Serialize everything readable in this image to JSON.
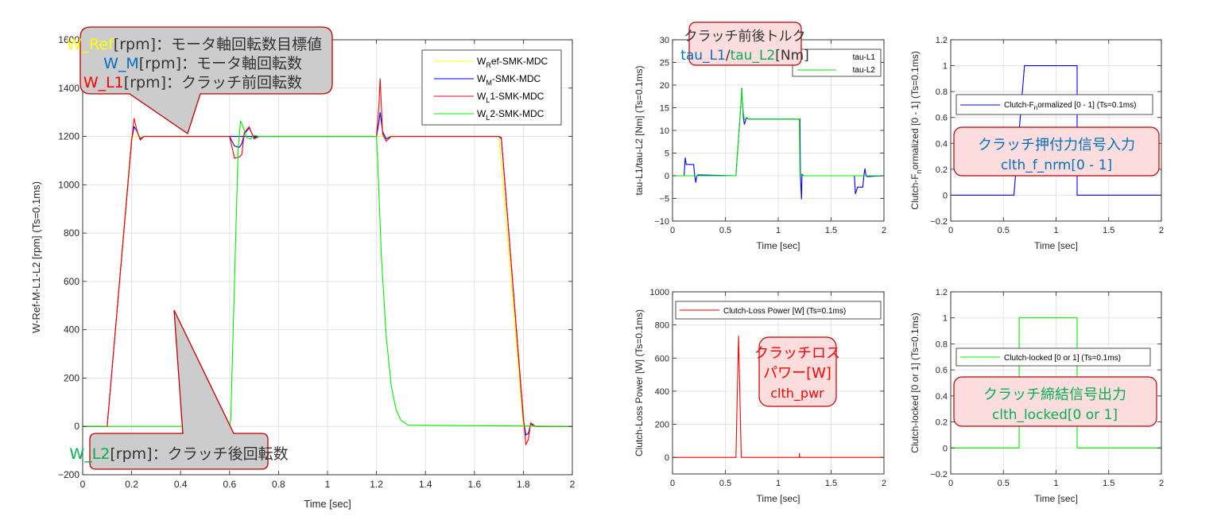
{
  "colors": {
    "ref": "#ffff00",
    "motor": "#0000ff",
    "l1": "#ff0000",
    "l2": "#00ee00",
    "callout_fill": "#cccccc",
    "callout_border": "#c00000",
    "pink_fill": "#fddddd",
    "label_blue": "#0070c0",
    "label_green": "#00b050",
    "label_red": "#ff0000",
    "label_yellow": "#ffff00",
    "grid": "#e3e3e3",
    "axis": "#262626"
  },
  "chart_data": [
    {
      "id": "main",
      "type": "line",
      "title": "",
      "xlabel": "Time [sec]",
      "ylabel": "W-Ref-M-L1-L2 [rpm] (Ts=0.1ms)",
      "xlim": [
        0,
        2
      ],
      "ylim": [
        -200,
        1600
      ],
      "xticks": [
        "0",
        "0.2",
        "0.4",
        "0.6",
        "0.8",
        "1",
        "1.2",
        "1.4",
        "1.6",
        "1.8",
        "2"
      ],
      "yticks": [
        "-200",
        "0",
        "200",
        "400",
        "600",
        "800",
        "1000",
        "1200",
        "1400",
        "1600"
      ],
      "grid": true,
      "legend_position": "northeast",
      "series": [
        {
          "name": "W_Ref-SMK-MDC",
          "legend_main": "W",
          "legend_sub": "R",
          "legend_rest": "ef-SMK-MDC",
          "color": "#ffff00",
          "x": [
            0,
            0.1,
            0.2,
            1.7,
            1.8,
            2
          ],
          "y": [
            0,
            0,
            1200,
            1200,
            0,
            0
          ]
        },
        {
          "name": "W_M-SMK-MDC",
          "legend_main": "W",
          "legend_sub": "M",
          "legend_rest": "-SMK-MDC",
          "color": "#0000ff",
          "x": [
            0,
            0.1,
            0.2,
            0.21,
            0.22,
            0.235,
            0.25,
            1.0,
            0.6,
            0.62,
            0.64,
            0.65,
            0.66,
            0.68,
            0.7,
            0.72,
            1.2,
            1.21,
            1.215,
            1.225,
            1.24,
            1.26,
            1.7,
            1.71,
            1.8,
            1.81,
            1.82,
            1.83,
            1.85,
            2
          ],
          "y": [
            0,
            0,
            1185,
            1240,
            1225,
            1190,
            1200,
            1200,
            1200,
            1160,
            1155,
            1170,
            1210,
            1235,
            1195,
            1200,
            1200,
            1260,
            1300,
            1220,
            1190,
            1200,
            1200,
            1195,
            30,
            -35,
            -30,
            10,
            0,
            0
          ]
        },
        {
          "name": "W_L1-SMK-MDC",
          "legend_main": "W",
          "legend_sub": "L",
          "legend_rest": "1-SMK-MDC",
          "color": "#ff0000",
          "x": [
            0,
            0.1,
            0.2,
            0.21,
            0.22,
            0.235,
            0.25,
            0.6,
            0.62,
            0.64,
            0.65,
            0.66,
            0.68,
            0.7,
            0.72,
            1.2,
            1.21,
            1.215,
            1.225,
            1.24,
            1.26,
            1.7,
            1.71,
            1.8,
            1.81,
            1.82,
            1.83,
            1.85,
            2
          ],
          "y": [
            0,
            0,
            1180,
            1275,
            1230,
            1185,
            1200,
            1200,
            1110,
            1115,
            1125,
            1215,
            1240,
            1190,
            1200,
            1200,
            1330,
            1440,
            1210,
            1180,
            1200,
            1200,
            1190,
            40,
            -75,
            -55,
            15,
            0,
            0
          ]
        },
        {
          "name": "W_L2-SMK-MDC",
          "legend_main": "W",
          "legend_sub": "L",
          "legend_rest": "2-SMK-MDC",
          "color": "#00ee00",
          "x": [
            0,
            0.6,
            0.605,
            0.62,
            0.635,
            0.645,
            0.655,
            0.67,
            0.685,
            0.7,
            0.72,
            1.2,
            1.205,
            1.22,
            1.24,
            1.26,
            1.28,
            1.3,
            1.33,
            2
          ],
          "y": [
            0,
            0,
            30,
            600,
            1150,
            1265,
            1240,
            1195,
            1190,
            1205,
            1200,
            1200,
            1100,
            700,
            370,
            170,
            70,
            25,
            5,
            0
          ]
        }
      ]
    },
    {
      "id": "torque",
      "type": "line",
      "xlabel": "Time [sec]",
      "ylabel": "tau-L1/tau-L2 [Nm] (Ts=0.1ms)",
      "xlim": [
        0,
        2
      ],
      "ylim": [
        -10,
        30
      ],
      "xticks": [
        "0",
        "0.5",
        "1",
        "1.5",
        "2"
      ],
      "yticks": [
        "-10",
        "-5",
        "0",
        "5",
        "10",
        "15",
        "20",
        "25",
        "30"
      ],
      "grid": true,
      "legend": [
        "tau-L1",
        "tau-L2"
      ],
      "series": [
        {
          "name": "tau-L1",
          "color": "#0000ff",
          "x": [
            0,
            0.1,
            0.11,
            0.12,
            0.13,
            0.15,
            0.19,
            0.2,
            0.21,
            0.22,
            0.23,
            0.24,
            0.6,
            0.65,
            0.655,
            0.67,
            0.68,
            0.7,
            0.72,
            1.2,
            1.205,
            1.21,
            1.22,
            1.225,
            1.24,
            1.7,
            1.705,
            1.72,
            1.73,
            1.75,
            1.79,
            1.8,
            1.81,
            1.82,
            1.83,
            1.84,
            2
          ],
          "y": [
            0,
            0,
            0,
            4,
            2.5,
            2.5,
            2.5,
            2.5,
            0,
            -1.5,
            0,
            0.2,
            0,
            17,
            19.3,
            13,
            11.3,
            12.8,
            12.5,
            12.5,
            12.5,
            0,
            -5.2,
            0.3,
            0,
            0,
            0,
            0,
            -4,
            -2.5,
            -2.5,
            -2.5,
            0,
            1.6,
            0,
            -0.2,
            0
          ]
        },
        {
          "name": "tau-L2",
          "color": "#00ee00",
          "x": [
            0,
            0.6,
            0.65,
            0.655,
            0.665,
            0.68,
            0.7,
            0.72,
            1.2,
            1.205,
            2
          ],
          "y": [
            0,
            0,
            17,
            19,
            15,
            12.4,
            12.6,
            12.5,
            12.5,
            0,
            0
          ]
        }
      ]
    },
    {
      "id": "force",
      "type": "line",
      "xlabel": "Time [sec]",
      "ylabel": "Clutch-F_normalized [0 - 1] (Ts=0.1ms)",
      "xlim": [
        0,
        2
      ],
      "ylim": [
        -0.2,
        1.2
      ],
      "xticks": [
        "0",
        "0.5",
        "1",
        "1.5",
        "2"
      ],
      "yticks": [
        "-0.2",
        "0",
        "0.2",
        "0.4",
        "0.6",
        "0.8",
        "1",
        "1.2"
      ],
      "grid": true,
      "legend": [
        "Clutch-F_normalized [0 - 1] (Ts=0.1ms)"
      ],
      "series": [
        {
          "name": "Clutch-F_normalized [0 - 1] (Ts=0.1ms)",
          "color": "#0000ff",
          "x": [
            0,
            0.6,
            0.7,
            1.2,
            1.2,
            2
          ],
          "y": [
            0,
            0,
            1,
            1,
            0,
            0
          ]
        }
      ]
    },
    {
      "id": "power",
      "type": "line",
      "xlabel": "Time [sec]",
      "ylabel": "Clutch-Loss Power [W] (Ts=0.1ms)",
      "xlim": [
        0,
        2
      ],
      "ylim": [
        -100,
        1000
      ],
      "xticks": [
        "0",
        "0.5",
        "1",
        "1.5",
        "2"
      ],
      "yticks": [
        "0",
        "200",
        "400",
        "600",
        "800",
        "1000"
      ],
      "grid": true,
      "legend": [
        "Clutch-Loss Power [W] (Ts=0.1ms)"
      ],
      "series": [
        {
          "name": "Clutch-Loss Power [W] (Ts=0.1ms)",
          "color": "#ff0000",
          "x": [
            0,
            0.6,
            0.625,
            0.65,
            0.655,
            1.2,
            1.201,
            1.203,
            1.205,
            2
          ],
          "y": [
            0,
            0,
            735,
            0,
            0,
            0,
            25,
            0,
            0,
            0
          ]
        }
      ]
    },
    {
      "id": "locked",
      "type": "line",
      "xlabel": "Time [sec]",
      "ylabel": "Clutch-locked [0 or 1] (Ts=0.1ms)",
      "xlim": [
        0,
        2
      ],
      "ylim": [
        -0.2,
        1.2
      ],
      "xticks": [
        "0",
        "0.5",
        "1",
        "1.5",
        "2"
      ],
      "yticks": [
        "-0.2",
        "0",
        "0.2",
        "0.4",
        "0.6",
        "0.8",
        "1",
        "1.2"
      ],
      "grid": true,
      "legend": [
        "Clutch-locked [0 or 1] (Ts=0.1ms)"
      ],
      "series": [
        {
          "name": "Clutch-locked [0 or 1] (Ts=0.1ms)",
          "color": "#00ee00",
          "x": [
            0,
            0.65,
            0.65,
            1.2,
            1.2,
            2
          ],
          "y": [
            0,
            0,
            1,
            1,
            0,
            0
          ]
        }
      ]
    }
  ],
  "annotations": {
    "main_top": {
      "lines": [
        {
          "var": "W_Ref",
          "var_color": "#ffff00",
          "text": "[rpm]：モータ軸回転数目標値"
        },
        {
          "var": "W_M",
          "var_color": "#0070c0",
          "text": "[rpm]：モータ軸回転数"
        },
        {
          "var": "W_L1",
          "var_color": "#ff0000",
          "text": "[rpm]：クラッチ前回転数"
        }
      ]
    },
    "main_bottom": {
      "var": "W_L2",
      "var_color": "#00b050",
      "text": "[rpm]：クラッチ後回転数"
    },
    "torque": {
      "title": "クラッチ前後トルク",
      "var1": "tau_L1",
      "sep": "/",
      "var2": "tau_L2",
      "unit": "[Nm]"
    },
    "force": {
      "line1": "クラッチ押付力信号入力",
      "line2": "clth_f_nrm[0 - 1]"
    },
    "power": {
      "line1": "クラッチロス",
      "line2": "パワー[W]",
      "line3": "clth_pwr"
    },
    "locked": {
      "line1": "クラッチ締結信号出力",
      "line2": "clth_locked[0 or 1]"
    }
  }
}
